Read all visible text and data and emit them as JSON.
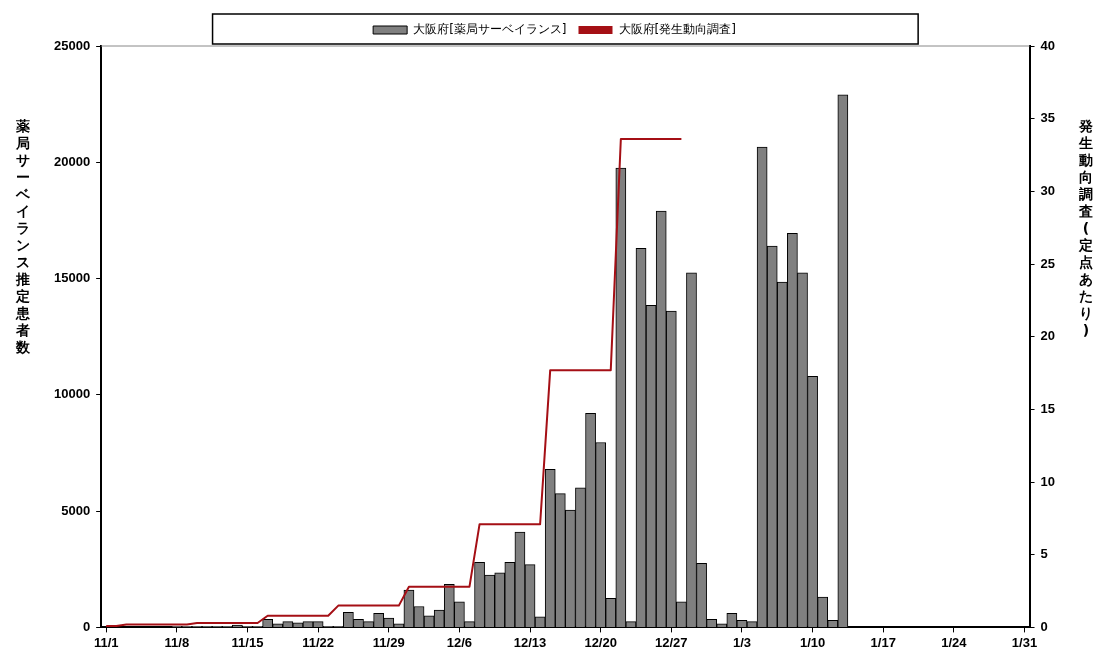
{
  "chart_data": {
    "type": "bar",
    "categories": [
      "11/1",
      null,
      null,
      null,
      null,
      null,
      null,
      "11/8",
      null,
      null,
      null,
      null,
      null,
      null,
      "11/15",
      null,
      null,
      null,
      null,
      null,
      null,
      "11/22",
      null,
      null,
      null,
      null,
      null,
      null,
      "11/29",
      null,
      null,
      null,
      null,
      null,
      null,
      "12/6",
      null,
      null,
      null,
      null,
      null,
      null,
      "12/13",
      null,
      null,
      null,
      null,
      null,
      null,
      "12/20",
      null,
      null,
      null,
      null,
      null,
      null,
      "12/27",
      null,
      null,
      null,
      null,
      null,
      null,
      "1/3",
      null,
      null,
      null,
      null,
      null,
      null,
      "1/10",
      null,
      null,
      null,
      null,
      null,
      null,
      "1/17",
      null,
      null,
      null,
      null,
      null,
      null,
      "1/24",
      null,
      null,
      null,
      null,
      null,
      null,
      "1/31"
    ],
    "series": [
      {
        "name": "大阪府[薬局サーベイランス]",
        "color": "#808080",
        "values": [
          null,
          null,
          null,
          null,
          null,
          null,
          null,
          50,
          50,
          50,
          50,
          50,
          50,
          100,
          50,
          50,
          350,
          150,
          250,
          200,
          250,
          250,
          50,
          50,
          650,
          350,
          250,
          600,
          400,
          150,
          1600,
          900,
          500,
          750,
          1850,
          1100,
          250,
          2800,
          2250,
          2350,
          2800,
          4100,
          2700,
          450,
          6800,
          5750,
          5050,
          6000,
          9200,
          7950,
          1250,
          19750,
          250,
          16300,
          13850,
          17900,
          13600,
          1100,
          15250,
          2750,
          350,
          150,
          600,
          300,
          250,
          20650,
          16400,
          14850,
          16950,
          15250,
          10800,
          1300,
          300,
          22900,
          null,
          null,
          null,
          null,
          null,
          null,
          null,
          null,
          null,
          null,
          null,
          null,
          null,
          null,
          null,
          null,
          null,
          null
        ]
      },
      {
        "name": "大阪府[発生動向調査]",
        "type": "line",
        "axis": "y2",
        "color": "#a50f15",
        "values": [
          0.1,
          0.1,
          0.2,
          0.2,
          0.2,
          0.2,
          0.2,
          0.2,
          0.2,
          0.3,
          0.3,
          0.3,
          0.3,
          0.3,
          0.3,
          0.3,
          0.8,
          0.8,
          0.8,
          0.8,
          0.8,
          0.8,
          0.8,
          1.5,
          1.5,
          1.5,
          1.5,
          1.5,
          1.5,
          1.5,
          2.8,
          2.8,
          2.8,
          2.8,
          2.8,
          2.8,
          2.8,
          7.1,
          7.1,
          7.1,
          7.1,
          7.1,
          7.1,
          7.1,
          17.7,
          17.7,
          17.7,
          17.7,
          17.7,
          17.7,
          17.7,
          33.6,
          33.6,
          33.6,
          33.6,
          33.6,
          33.6,
          33.6,
          null,
          null,
          null,
          null,
          null,
          null,
          null,
          null,
          null,
          null,
          null,
          null,
          null,
          null,
          null,
          null,
          null,
          null,
          null,
          null,
          null,
          null,
          null,
          null,
          null,
          null,
          null,
          null,
          null,
          null,
          null,
          null,
          null,
          null
        ]
      }
    ],
    "ylim": [
      0,
      25000
    ],
    "yticks": [
      0,
      5000,
      10000,
      15000,
      20000,
      25000
    ],
    "y2lim": [
      0,
      40
    ],
    "y2ticks": [
      0,
      5,
      10,
      15,
      20,
      25,
      30,
      35,
      40
    ],
    "ylabel": "薬局サーベイランス推定患者数",
    "y2label": "発生動向調査(定点あたり)",
    "legend": "top",
    "marker": "none"
  }
}
